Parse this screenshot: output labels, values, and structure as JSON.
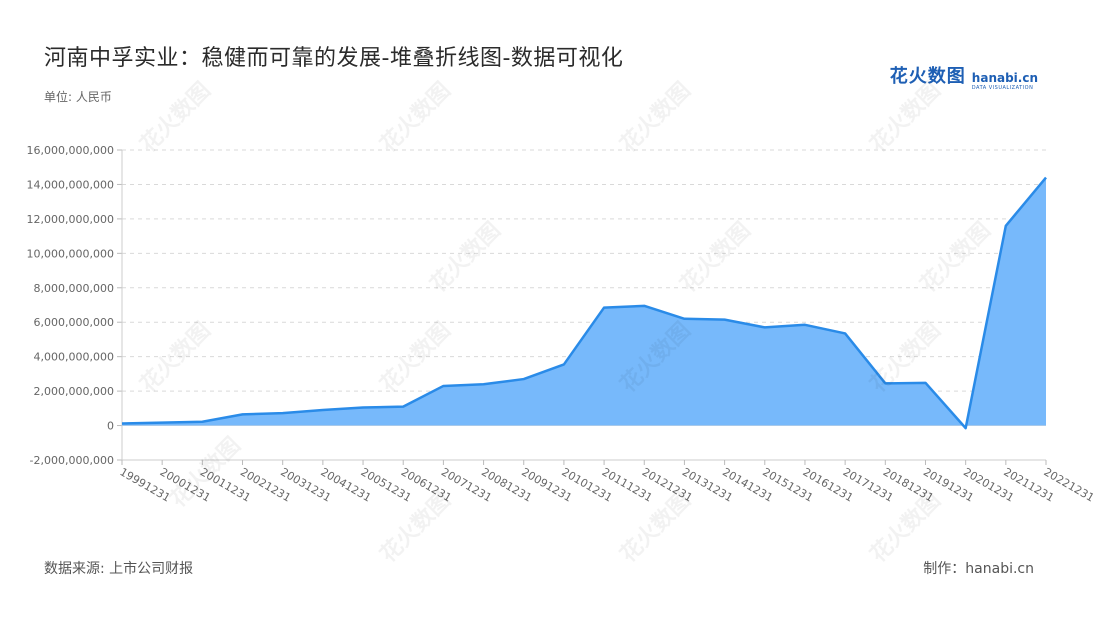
{
  "title": "河南中孚实业：稳健而可靠的发展-堆叠折线图-数据可视化",
  "unit_label": "单位: 人民币",
  "logo": {
    "cn": "花火数图",
    "en": "hanabi.cn",
    "en_sub": "DATA VISUALIZATION"
  },
  "watermark_text": "花火数图",
  "footer": {
    "source": "数据来源: 上市公司财报",
    "maker": "制作：hanabi.cn"
  },
  "colors": {
    "line": "#2a8be8",
    "fill": "#77b9fb",
    "grid": "#d9d9d9",
    "tick_text": "#666666",
    "logo": "#1e5fb4"
  },
  "chart_data": {
    "type": "area",
    "x": [
      "19991231",
      "20001231",
      "20011231",
      "20021231",
      "20031231",
      "20041231",
      "20051231",
      "20061231",
      "20071231",
      "20081231",
      "20091231",
      "20101231",
      "20111231",
      "20121231",
      "20131231",
      "20141231",
      "20151231",
      "20161231",
      "20171231",
      "20181231",
      "20191231",
      "20201231",
      "20211231",
      "20221231"
    ],
    "series": [
      {
        "values": [
          120000000,
          170000000,
          220000000,
          650000000,
          720000000,
          900000000,
          1050000000,
          1100000000,
          2300000000,
          2400000000,
          2700000000,
          3550000000,
          6850000000,
          6950000000,
          6200000000,
          6150000000,
          5700000000,
          5850000000,
          5350000000,
          2450000000,
          2480000000,
          -150000000,
          11600000000,
          14400000000
        ]
      }
    ],
    "yticks": [
      "-2,000,000,000",
      "0",
      "2,000,000,000",
      "4,000,000,000",
      "6,000,000,000",
      "8,000,000,000",
      "10,000,000,000",
      "12,000,000,000",
      "14,000,000,000",
      "16,000,000,000"
    ],
    "ylim": [
      -2000000000,
      16000000000
    ],
    "grid": true,
    "legend": "none"
  }
}
